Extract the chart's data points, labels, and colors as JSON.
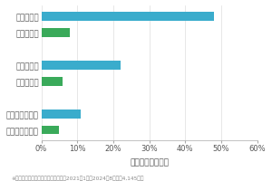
{
  "categories": [
    "》犬「個別",
    "》犬「合同",
    "",
    "》猫「個別",
    "》猫「合同",
    "",
    "》その他「個別",
    "》その他「合同"
  ],
  "categories_display": [
    "《犬》個別",
    "《犬》合同",
    "",
    "《猫》個別",
    "《猫》合同",
    "",
    "《その他》個別",
    "《その他》合同"
  ],
  "labels": [
    "》犬「 個別",
    "》犬「 合同",
    "",
    "》猫「 個別",
    "》猫「 合同",
    "",
    "》その他「 個別",
    "》その他「 合同"
  ],
  "values": [
    48,
    8,
    0,
    22,
    6,
    0,
    11,
    5
  ],
  "bar_colors": [
    "#3aaccc",
    "#3aaa5a",
    "#ffffff",
    "#3aaccc",
    "#3aaa5a",
    "#ffffff",
    "#3aaccc",
    "#3aaa5a"
  ],
  "xlabel": "件数の割合（％）",
  "xlim": [
    0,
    60
  ],
  "xticks": [
    0,
    10,
    20,
    30,
    40,
    50,
    60
  ],
  "xticklabels": [
    "0%",
    "10%",
    "20%",
    "30%",
    "40%",
    "50%",
    "60%"
  ],
  "footnote": "※弊社受付の案件を対象に集計（期間2021年1月～2024年8月、列4,145件）",
  "bar_height": 0.55,
  "background_color": "#ffffff",
  "label_fontsize": 6.2,
  "tick_fontsize": 6.0,
  "xlabel_fontsize": 6.5,
  "footnote_fontsize": 4.2,
  "text_color": "#555555",
  "grid_color": "#dddddd"
}
